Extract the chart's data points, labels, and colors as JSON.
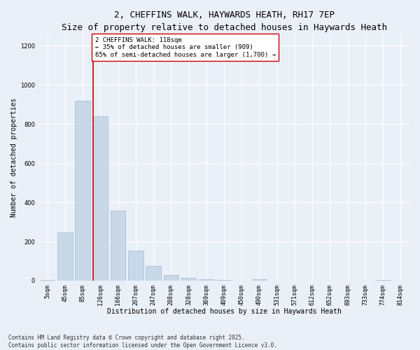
{
  "title": "2, CHEFFINS WALK, HAYWARDS HEATH, RH17 7EP",
  "subtitle": "Size of property relative to detached houses in Haywards Heath",
  "xlabel": "Distribution of detached houses by size in Haywards Heath",
  "ylabel": "Number of detached properties",
  "categories": [
    "5sqm",
    "45sqm",
    "85sqm",
    "126sqm",
    "166sqm",
    "207sqm",
    "247sqm",
    "288sqm",
    "328sqm",
    "369sqm",
    "409sqm",
    "450sqm",
    "490sqm",
    "531sqm",
    "571sqm",
    "612sqm",
    "652sqm",
    "693sqm",
    "733sqm",
    "774sqm",
    "814sqm"
  ],
  "values": [
    5,
    248,
    920,
    840,
    358,
    155,
    75,
    30,
    15,
    8,
    5,
    0,
    8,
    0,
    0,
    0,
    0,
    0,
    0,
    5,
    0
  ],
  "bar_color": "#c8d8e8",
  "bar_edgecolor": "#a0b8d0",
  "vline_color": "#cc0000",
  "annotation_text": "2 CHEFFINS WALK: 118sqm\n← 35% of detached houses are smaller (909)\n65% of semi-detached houses are larger (1,700) →",
  "annotation_box_edgecolor": "#cc0000",
  "annotation_box_facecolor": "#ffffff",
  "ylim": [
    0,
    1260
  ],
  "yticks": [
    0,
    200,
    400,
    600,
    800,
    1000,
    1200
  ],
  "background_color": "#eaf0f8",
  "plot_bg_color": "#eaf0f8",
  "footer": "Contains HM Land Registry data © Crown copyright and database right 2025.\nContains public sector information licensed under the Open Government Licence v3.0.",
  "title_fontsize": 9,
  "label_fontsize": 7,
  "tick_fontsize": 6,
  "annot_fontsize": 6.5,
  "footer_fontsize": 5.5
}
